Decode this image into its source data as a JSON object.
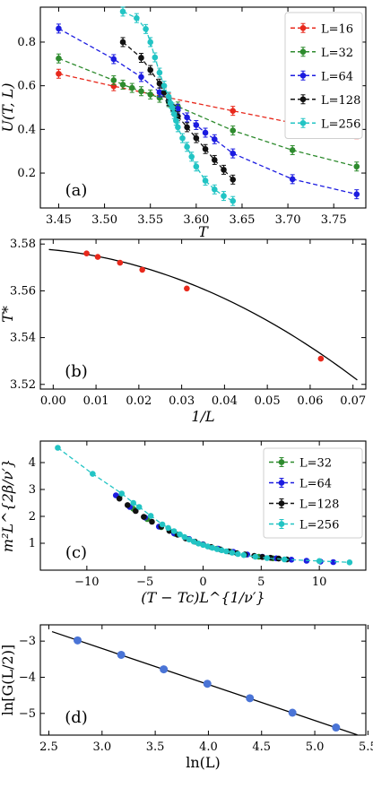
{
  "chart_data": [
    {
      "panel": "(a)",
      "type": "line",
      "xlabel": "T",
      "ylabel": "U(T, L)",
      "xlim": [
        3.43,
        3.785
      ],
      "ylim": [
        0.04,
        0.96
      ],
      "xticks": [
        3.45,
        3.5,
        3.55,
        3.6,
        3.65,
        3.7,
        3.75
      ],
      "yticks": [
        0.2,
        0.4,
        0.6,
        0.8
      ],
      "legend_position": "top-right",
      "series": [
        {
          "name": "L=16",
          "color": "#e8291c",
          "style": "dashed-markers",
          "x": [
            3.45,
            3.51,
            3.57,
            3.64,
            3.705,
            3.775
          ],
          "y": [
            0.655,
            0.598,
            0.545,
            0.485,
            0.43,
            0.378
          ]
        },
        {
          "name": "L=32",
          "color": "#2e8b2e",
          "style": "dashed-markers",
          "x": [
            3.45,
            3.51,
            3.52,
            3.53,
            3.54,
            3.55,
            3.56,
            3.57,
            3.58,
            3.64,
            3.705,
            3.775
          ],
          "y": [
            0.725,
            0.625,
            0.605,
            0.59,
            0.575,
            0.56,
            0.545,
            0.525,
            0.505,
            0.395,
            0.305,
            0.23
          ]
        },
        {
          "name": "L=64",
          "color": "#1c1ce0",
          "style": "dashed-markers",
          "x": [
            3.45,
            3.51,
            3.54,
            3.56,
            3.57,
            3.58,
            3.59,
            3.6,
            3.61,
            3.62,
            3.64,
            3.705,
            3.775
          ],
          "y": [
            0.862,
            0.722,
            0.64,
            0.57,
            0.53,
            0.495,
            0.455,
            0.42,
            0.385,
            0.355,
            0.29,
            0.172,
            0.103
          ]
        },
        {
          "name": "L=128",
          "color": "#111111",
          "style": "dashed-markers",
          "x": [
            3.52,
            3.54,
            3.55,
            3.56,
            3.565,
            3.57,
            3.575,
            3.58,
            3.59,
            3.6,
            3.61,
            3.62,
            3.63,
            3.64
          ],
          "y": [
            0.8,
            0.728,
            0.672,
            0.61,
            0.57,
            0.53,
            0.49,
            0.46,
            0.41,
            0.36,
            0.31,
            0.26,
            0.215,
            0.17
          ]
        },
        {
          "name": "L=256",
          "color": "#22c4c4",
          "style": "dashed-markers",
          "x": [
            3.52,
            3.535,
            3.545,
            3.55,
            3.555,
            3.56,
            3.565,
            3.57,
            3.572,
            3.574,
            3.576,
            3.578,
            3.58,
            3.585,
            3.59,
            3.595,
            3.6,
            3.61,
            3.62,
            3.63,
            3.64
          ],
          "y": [
            0.94,
            0.91,
            0.86,
            0.8,
            0.73,
            0.66,
            0.6,
            0.55,
            0.52,
            0.5,
            0.47,
            0.44,
            0.41,
            0.36,
            0.32,
            0.275,
            0.23,
            0.165,
            0.125,
            0.095,
            0.072
          ]
        }
      ]
    },
    {
      "panel": "(b)",
      "type": "scatter",
      "xlabel": "1/L",
      "ylabel": "T*",
      "xlim": [
        -0.003,
        0.073
      ],
      "ylim": [
        3.518,
        3.582
      ],
      "xticks": [
        0.0,
        0.01,
        0.02,
        0.03,
        0.04,
        0.05,
        0.06,
        0.07
      ],
      "yticks": [
        3.52,
        3.54,
        3.56,
        3.58
      ],
      "points": {
        "color": "#e8291c",
        "x": [
          0.0078,
          0.0104,
          0.0156,
          0.0208,
          0.0312,
          0.0625
        ],
        "y": [
          3.576,
          3.5745,
          3.572,
          3.569,
          3.561,
          3.531
        ]
      },
      "fit": {
        "color": "#000000",
        "x_from": -0.001,
        "x_to": 0.071,
        "a": 3.5775,
        "b": -0.18,
        "c": -8.5
      }
    },
    {
      "panel": "(c)",
      "type": "scatter",
      "xlabel": "(T − Tc)L^{1/ν′}",
      "ylabel": "m²L^{2β/ν′}",
      "xlim": [
        -14,
        14
      ],
      "ylim": [
        0,
        4.8
      ],
      "xticks": [
        -10,
        -5,
        0,
        5,
        10
      ],
      "yticks": [
        1,
        2,
        3,
        4
      ],
      "legend_position": "top-right",
      "series": [
        {
          "name": "L=32",
          "color": "#2e8b2e",
          "x": [
            -7.2,
            -6,
            -4.8,
            -3.6,
            -2.4,
            -1.2,
            0,
            1.2,
            2.4,
            3.6,
            4.8,
            6
          ],
          "y": [
            2.72,
            2.28,
            1.9,
            1.6,
            1.35,
            1.15,
            0.95,
            0.8,
            0.68,
            0.58,
            0.5,
            0.44
          ]
        },
        {
          "name": "L=64",
          "color": "#1c1ce0",
          "x": [
            -7.5,
            -6.3,
            -5,
            -3.8,
            -2.5,
            -1.2,
            0,
            1.3,
            2.6,
            3.8,
            5.1,
            6.3,
            7.6,
            8.9,
            10.1,
            11.2
          ],
          "y": [
            2.78,
            2.35,
            1.96,
            1.62,
            1.37,
            1.16,
            0.96,
            0.8,
            0.68,
            0.58,
            0.5,
            0.44,
            0.39,
            0.35,
            0.32,
            0.3
          ]
        },
        {
          "name": "L=128",
          "color": "#111111",
          "x": [
            -7.2,
            -6.5,
            -5.8,
            -5.1,
            -4.4,
            -3.6,
            -2.9,
            -2.2,
            -1.5,
            -0.7,
            0,
            0.7,
            1.5,
            2.2,
            2.9,
            3.6,
            4.4,
            5.1,
            5.8,
            6.5,
            7.2
          ],
          "y": [
            2.66,
            2.42,
            2.2,
            1.98,
            1.8,
            1.62,
            1.46,
            1.32,
            1.18,
            1.06,
            0.95,
            0.86,
            0.77,
            0.7,
            0.63,
            0.58,
            0.53,
            0.49,
            0.46,
            0.43,
            0.4
          ]
        },
        {
          "name": "L=256",
          "color": "#22c4c4",
          "x": [
            -12.5,
            -9.5,
            -7,
            -6,
            -5.5,
            -4.5,
            -3.5,
            -3,
            -2.5,
            -2,
            -1.6,
            -1.2,
            -0.8,
            -0.4,
            0,
            0.4,
            0.8,
            1.2,
            1.6,
            2,
            2.5,
            3,
            3.5,
            4.5,
            5.5,
            7,
            10,
            12.6
          ],
          "y": [
            4.55,
            3.58,
            2.85,
            2.5,
            2.35,
            2.02,
            1.7,
            1.57,
            1.45,
            1.33,
            1.23,
            1.14,
            1.06,
            0.99,
            0.94,
            0.88,
            0.83,
            0.78,
            0.74,
            0.7,
            0.65,
            0.6,
            0.56,
            0.5,
            0.45,
            0.4,
            0.34,
            0.29
          ]
        }
      ]
    },
    {
      "panel": "(d)",
      "type": "scatter",
      "xlabel": "ln(L)",
      "ylabel": "ln[G(L/2)]",
      "xlim": [
        2.42,
        5.48
      ],
      "ylim": [
        -5.6,
        -2.55
      ],
      "xticks": [
        2.5,
        3.0,
        3.5,
        4.0,
        4.5,
        5.0,
        5.5
      ],
      "yticks": [
        -3,
        -4,
        -5
      ],
      "points": {
        "color": "#4a74d6",
        "x": [
          2.77,
          3.18,
          3.58,
          3.99,
          4.39,
          4.79,
          5.2
        ],
        "y": [
          -2.98,
          -3.38,
          -3.78,
          -4.18,
          -4.58,
          -4.98,
          -5.39
        ]
      },
      "fit": {
        "color": "#000000",
        "x_from": 2.53,
        "x_to": 5.4,
        "slope": -0.995,
        "intercept": -0.22
      }
    }
  ]
}
